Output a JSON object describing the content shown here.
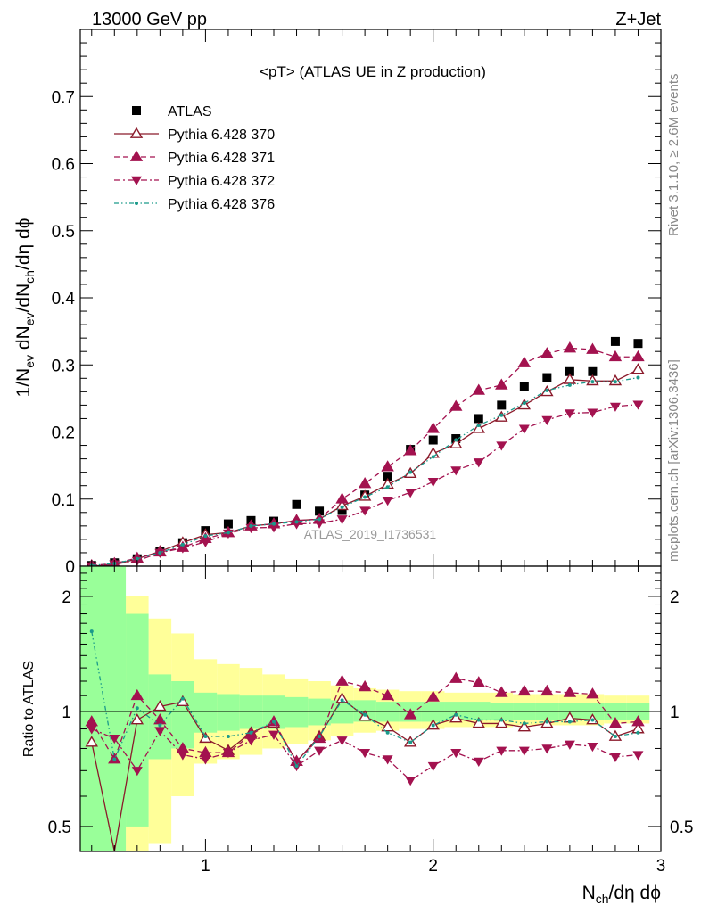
{
  "header": {
    "left": "13000 GeV pp",
    "right": "Z+Jet"
  },
  "side": {
    "rivet": "Rivet 3.1.10, ≥ 2.6M events",
    "mcplots": "mcplots.cern.ch [arXiv:1306.3436]"
  },
  "watermark": "ATLAS_2019_I1736531",
  "chart_data": [
    {
      "type": "scatter",
      "title": "<pT> (ATLAS UE in Z production)",
      "ylabel_parts": {
        "a": "1/N",
        "b": "ev",
        "c": " dN",
        "d": "ev",
        "e": "/dN",
        "f": "ch",
        "g": "/dη dϕ"
      },
      "xlabel_parts": {
        "a": "N",
        "b": "ch",
        "c": "/dη dϕ"
      },
      "xlim": [
        0.45,
        3.0
      ],
      "ylim": [
        0.0,
        0.8
      ],
      "yticks": [
        0,
        0.1,
        0.2,
        0.3,
        0.4,
        0.5,
        0.6,
        0.7
      ],
      "yticklabels": [
        "0",
        "0.1",
        "0.2",
        "0.3",
        "0.4",
        "0.5",
        "0.6",
        "0.7"
      ],
      "xticks": [
        1,
        2,
        3
      ],
      "xticklabels": [
        "1",
        "2",
        "3"
      ],
      "legend_position": "top-left",
      "x": [
        0.5,
        0.6,
        0.7,
        0.8,
        0.9,
        1.0,
        1.1,
        1.2,
        1.3,
        1.4,
        1.5,
        1.6,
        1.7,
        1.8,
        1.9,
        2.0,
        2.1,
        2.2,
        2.3,
        2.4,
        2.5,
        2.6,
        2.7,
        2.8,
        2.9
      ],
      "series": [
        {
          "name": "ATLAS",
          "color": "#000000",
          "marker": "square",
          "values": [
            0.001,
            0.005,
            0.011,
            0.022,
            0.035,
            0.053,
            0.063,
            0.068,
            0.067,
            0.092,
            0.082,
            0.083,
            0.106,
            0.134,
            0.174,
            0.188,
            0.19,
            0.22,
            0.24,
            0.268,
            0.281,
            0.29,
            0.29,
            0.335,
            0.332
          ]
        },
        {
          "name": "Pythia 6.428 370",
          "color": "#8b1a2b",
          "marker": "triangle-up-open",
          "line": "solid",
          "values": [
            0.0,
            0.002,
            0.011,
            0.022,
            0.035,
            0.047,
            0.05,
            0.06,
            0.063,
            0.068,
            0.07,
            0.09,
            0.104,
            0.122,
            0.138,
            0.168,
            0.182,
            0.205,
            0.222,
            0.24,
            0.26,
            0.278,
            0.276,
            0.276,
            0.293
          ]
        },
        {
          "name": "Pythia 6.428 371",
          "color": "#a3124f",
          "marker": "triangle-up",
          "line": "dashed",
          "values": [
            0.001,
            0.004,
            0.012,
            0.021,
            0.028,
            0.041,
            0.05,
            0.06,
            0.063,
            0.068,
            0.07,
            0.1,
            0.123,
            0.148,
            0.172,
            0.205,
            0.238,
            0.262,
            0.27,
            0.303,
            0.317,
            0.325,
            0.323,
            0.312,
            0.312
          ]
        },
        {
          "name": "Pythia 6.428 372",
          "color": "#a3124f",
          "marker": "triangle-down",
          "line": "dashdot",
          "values": [
            0.0,
            0.003,
            0.008,
            0.02,
            0.027,
            0.036,
            0.049,
            0.057,
            0.058,
            0.063,
            0.064,
            0.07,
            0.083,
            0.098,
            0.11,
            0.126,
            0.143,
            0.155,
            0.18,
            0.205,
            0.218,
            0.228,
            0.229,
            0.238,
            0.241
          ]
        },
        {
          "name": "Pythia 6.428 376",
          "color": "#1a9a8a",
          "marker": "dot",
          "line": "dashdotdot",
          "values": [
            0.001,
            0.004,
            0.011,
            0.02,
            0.032,
            0.045,
            0.05,
            0.06,
            0.063,
            0.066,
            0.07,
            0.088,
            0.103,
            0.118,
            0.14,
            0.163,
            0.188,
            0.21,
            0.225,
            0.243,
            0.262,
            0.27,
            0.275,
            0.275,
            0.281
          ]
        }
      ]
    },
    {
      "type": "line",
      "ylabel": "Ratio to ATLAS",
      "xlim": [
        0.45,
        3.0
      ],
      "ylim": [
        0.43,
        2.4
      ],
      "yscale": "log",
      "yticks": [
        0.5,
        1,
        2
      ],
      "yticklabels": [
        "0.5",
        "1",
        "2"
      ],
      "x": [
        0.5,
        0.6,
        0.7,
        0.8,
        0.9,
        1.0,
        1.1,
        1.2,
        1.3,
        1.4,
        1.5,
        1.6,
        1.7,
        1.8,
        1.9,
        2.0,
        2.1,
        2.2,
        2.3,
        2.4,
        2.5,
        2.6,
        2.7,
        2.8,
        2.9
      ],
      "band_green": [
        [
          0.3,
          2.4
        ],
        [
          0.3,
          2.4
        ],
        [
          0.5,
          1.8
        ],
        [
          0.75,
          1.25
        ],
        [
          0.8,
          1.2
        ],
        [
          0.88,
          1.12
        ],
        [
          0.89,
          1.11
        ],
        [
          0.9,
          1.1
        ],
        [
          0.9,
          1.1
        ],
        [
          0.91,
          1.09
        ],
        [
          0.92,
          1.08
        ],
        [
          0.93,
          1.07
        ],
        [
          0.94,
          1.07
        ],
        [
          0.94,
          1.06
        ],
        [
          0.94,
          1.06
        ],
        [
          0.94,
          1.06
        ],
        [
          0.95,
          1.06
        ],
        [
          0.95,
          1.06
        ],
        [
          0.95,
          1.05
        ],
        [
          0.95,
          1.05
        ],
        [
          0.95,
          1.05
        ],
        [
          0.95,
          1.05
        ],
        [
          0.95,
          1.05
        ],
        [
          0.95,
          1.05
        ],
        [
          0.95,
          1.05
        ]
      ],
      "band_yellow": [
        [
          0.3,
          2.4
        ],
        [
          0.3,
          1.95
        ],
        [
          0.35,
          2.0
        ],
        [
          0.45,
          1.75
        ],
        [
          0.6,
          1.6
        ],
        [
          0.73,
          1.37
        ],
        [
          0.75,
          1.33
        ],
        [
          0.77,
          1.3
        ],
        [
          0.8,
          1.25
        ],
        [
          0.82,
          1.22
        ],
        [
          0.84,
          1.2
        ],
        [
          0.86,
          1.17
        ],
        [
          0.88,
          1.15
        ],
        [
          0.89,
          1.14
        ],
        [
          0.9,
          1.13
        ],
        [
          0.9,
          1.13
        ],
        [
          0.91,
          1.12
        ],
        [
          0.91,
          1.12
        ],
        [
          0.91,
          1.12
        ],
        [
          0.92,
          1.11
        ],
        [
          0.92,
          1.11
        ],
        [
          0.92,
          1.11
        ],
        [
          0.92,
          1.11
        ],
        [
          0.93,
          1.1
        ],
        [
          0.93,
          1.1
        ]
      ],
      "series": [
        {
          "name": "Pythia 6.428 370",
          "values": [
            0.83,
            0.38,
            0.95,
            1.03,
            1.06,
            0.85,
            0.79,
            0.88,
            0.93,
            0.74,
            0.86,
            1.08,
            0.97,
            0.91,
            0.83,
            0.92,
            0.96,
            0.93,
            0.93,
            0.91,
            0.93,
            0.96,
            0.95,
            0.86,
            0.9
          ]
        },
        {
          "name": "Pythia 6.428 371",
          "values": [
            0.94,
            0.75,
            1.1,
            0.95,
            0.8,
            0.78,
            0.78,
            0.87,
            0.94,
            0.74,
            0.85,
            1.2,
            1.16,
            1.1,
            0.98,
            1.09,
            1.22,
            1.19,
            1.12,
            1.13,
            1.13,
            1.12,
            1.11,
            0.93,
            0.94
          ]
        },
        {
          "name": "Pythia 6.428 372",
          "values": [
            0.9,
            0.85,
            0.7,
            0.89,
            0.77,
            0.75,
            0.78,
            0.84,
            0.87,
            0.72,
            0.79,
            0.84,
            0.78,
            0.75,
            0.66,
            0.72,
            0.78,
            0.74,
            0.79,
            0.79,
            0.8,
            0.82,
            0.81,
            0.76,
            0.77
          ]
        },
        {
          "name": "Pythia 6.428 376",
          "values": [
            1.62,
            0.75,
            1.02,
            0.92,
            1.08,
            0.86,
            0.86,
            0.88,
            0.94,
            0.72,
            0.86,
            1.07,
            0.98,
            0.88,
            0.83,
            0.92,
            0.98,
            0.95,
            0.95,
            0.93,
            0.94,
            0.94,
            0.95,
            0.86,
            0.88
          ]
        }
      ]
    }
  ]
}
